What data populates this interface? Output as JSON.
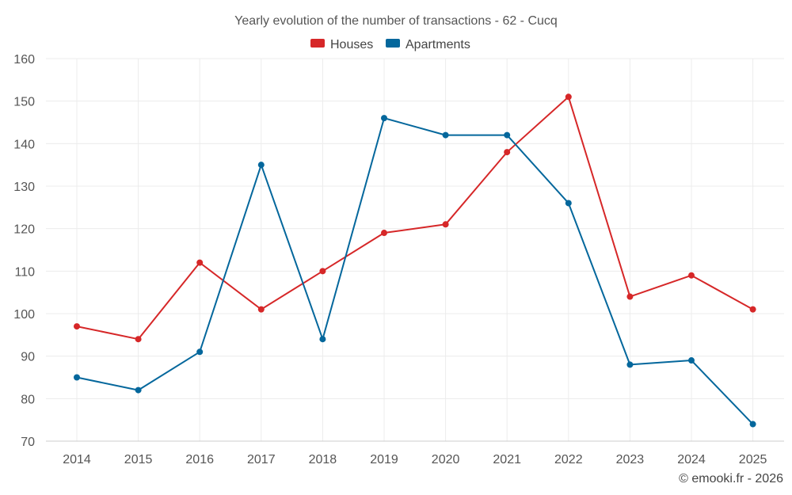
{
  "chart_data": {
    "type": "line",
    "title": "Yearly evolution of the number of transactions - 62 - Cucq",
    "xlabel": "",
    "ylabel": "",
    "categories": [
      "2014",
      "2015",
      "2016",
      "2017",
      "2018",
      "2019",
      "2020",
      "2021",
      "2022",
      "2023",
      "2024",
      "2025"
    ],
    "yticks": [
      70,
      80,
      90,
      100,
      110,
      120,
      130,
      140,
      150,
      160
    ],
    "ylim": [
      70,
      160
    ],
    "grid": true,
    "legend_position": "top-center",
    "series": [
      {
        "name": "Houses",
        "color": "#d62728",
        "values": [
          97,
          94,
          112,
          101,
          110,
          119,
          121,
          138,
          151,
          104,
          109,
          101
        ]
      },
      {
        "name": "Apartments",
        "color": "#04679c",
        "values": [
          85,
          82,
          91,
          135,
          94,
          146,
          142,
          142,
          126,
          88,
          89,
          74
        ]
      }
    ]
  },
  "credit": "© emooki.fr - 2026"
}
